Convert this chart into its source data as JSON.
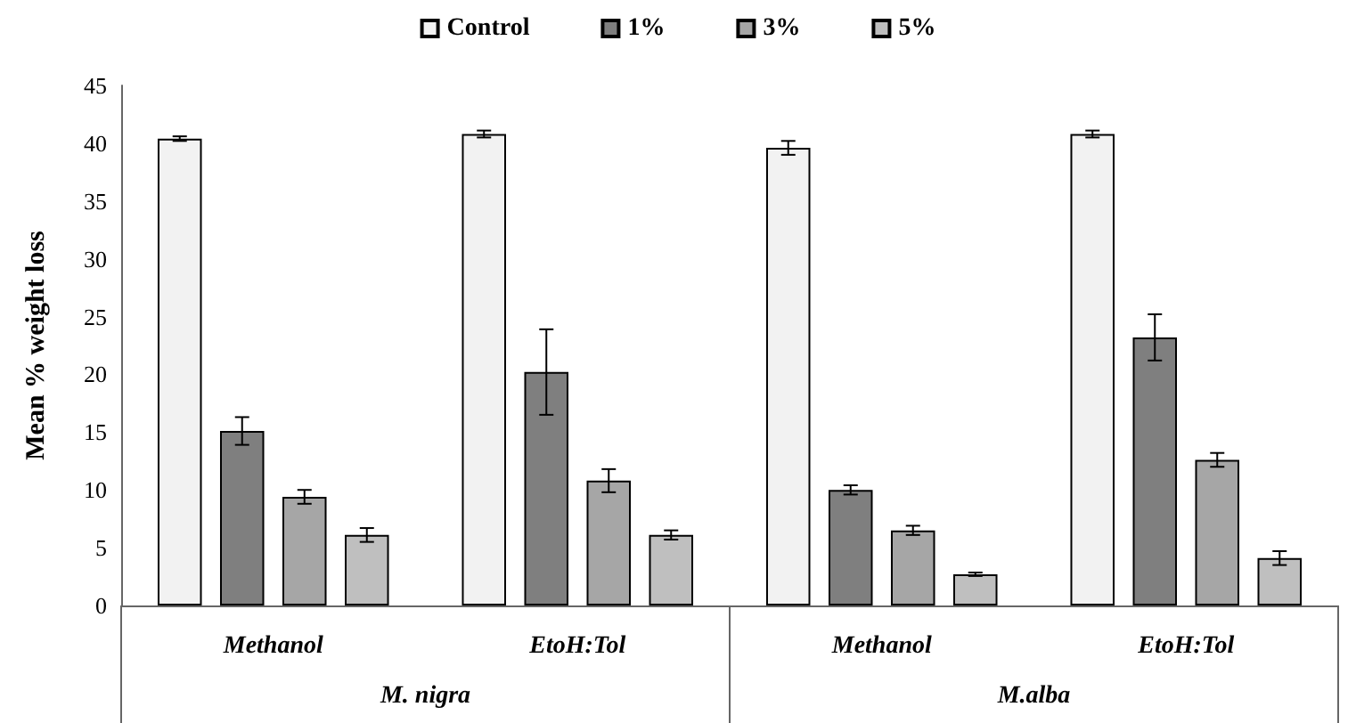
{
  "chart_data": {
    "type": "bar",
    "ylabel": "Mean % weight loss",
    "categories": [
      "Methanol",
      "EtoH:Tol",
      "Methanol",
      "EtoH:Tol"
    ],
    "series": [
      {
        "name": "Control",
        "color": "#f2f2f2",
        "values": [
          40.4,
          40.8,
          39.6,
          40.8
        ],
        "errors": [
          0.2,
          0.3,
          0.6,
          0.3
        ]
      },
      {
        "name": "1%",
        "color": "#7f7f7f",
        "values": [
          15.1,
          20.2,
          10.0,
          23.2
        ],
        "errors": [
          1.2,
          3.7,
          0.4,
          2.0
        ]
      },
      {
        "name": "3%",
        "color": "#a6a6a6",
        "values": [
          9.4,
          10.8,
          6.5,
          12.6
        ],
        "errors": [
          0.6,
          1.0,
          0.4,
          0.6
        ]
      },
      {
        "name": "5%",
        "color": "#bfbfbf",
        "values": [
          6.1,
          6.1,
          2.7,
          4.1
        ],
        "errors": [
          0.6,
          0.4,
          0.15,
          0.6
        ]
      }
    ],
    "ylim": [
      0,
      45
    ],
    "yticks": [
      0,
      5,
      10,
      15,
      20,
      25,
      30,
      35,
      40,
      45
    ],
    "grid": false,
    "legend": "top",
    "annotations": [
      "M. nigra",
      "M.alba"
    ]
  }
}
